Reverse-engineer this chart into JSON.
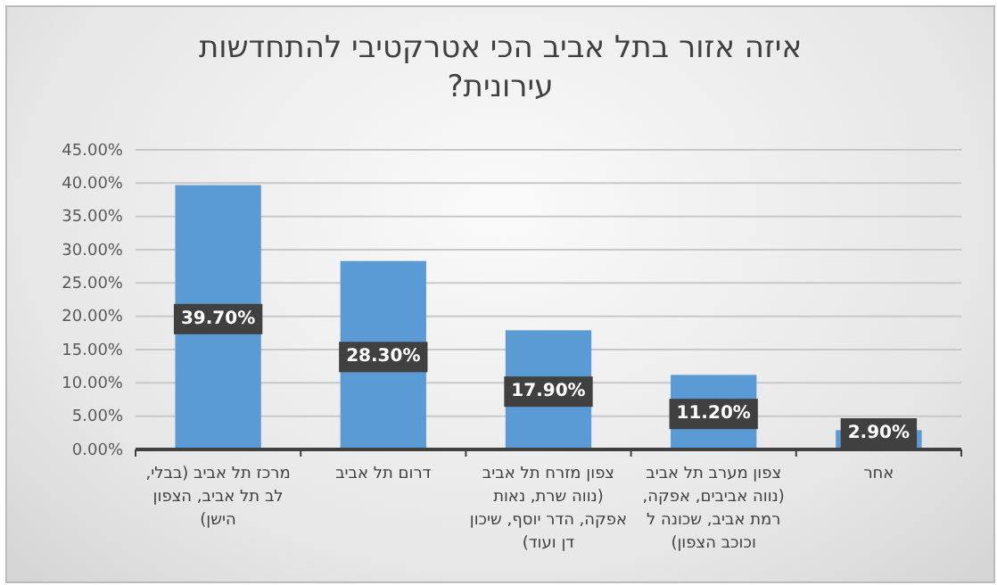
{
  "chart_data": {
    "type": "bar",
    "title": "איזה אזור בתל אביב הכי אטרקטיבי להתחדשות עירונית?",
    "categories": [
      "מרכז תל אביב (בבלי, לב תל אביב, הצפון הישן)",
      "דרום תל אביב",
      "צפון מזרח תל אביב (נווה שרת, נאות אפקה, הדר יוסף, שיכון דן ועוד)",
      "צפון מערב תל אביב (נווה אביבים, אפקה, רמת אביב, שכונה ל וכוכב הצפון)",
      "אחר"
    ],
    "values": [
      39.7,
      28.3,
      17.9,
      11.2,
      2.9
    ],
    "value_labels": [
      "39.70%",
      "28.30%",
      "17.90%",
      "11.20%",
      "2.90%"
    ],
    "color": "#5b9bd5",
    "ylim": [
      0,
      45
    ],
    "yticks": [
      {
        "value": 0,
        "label": "0.00%"
      },
      {
        "value": 5,
        "label": "5.00%"
      },
      {
        "value": 10,
        "label": "10.00%"
      },
      {
        "value": 15,
        "label": "15.00%"
      },
      {
        "value": 20,
        "label": "20.00%"
      },
      {
        "value": 25,
        "label": "25.00%"
      },
      {
        "value": 30,
        "label": "30.00%"
      },
      {
        "value": 35,
        "label": "35.00%"
      },
      {
        "value": 40,
        "label": "40.00%"
      },
      {
        "value": 45,
        "label": "45.00%"
      }
    ],
    "grid": "y"
  }
}
